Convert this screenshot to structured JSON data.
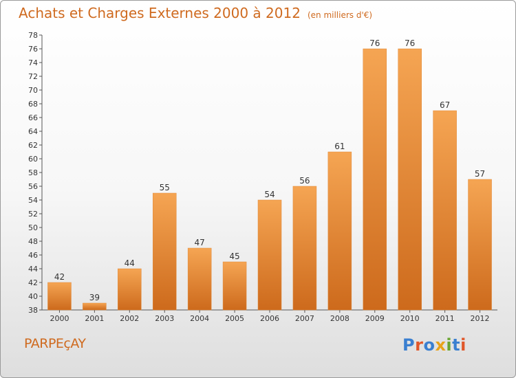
{
  "header": {
    "title": "Achats et Charges Externes 2000 à 2012",
    "unit": "(en milliers d'€)"
  },
  "footer": {
    "commune": "PARPEçAY",
    "brand": "Proxiti",
    "brand_colors": [
      "#3a7fd0",
      "#e0572a",
      "#3a7fd0",
      "#e8a21a",
      "#6aa531",
      "#3a7fd0",
      "#e0572a"
    ]
  },
  "colors": {
    "bar_light": "#f5a553",
    "bar_dark": "#cd6a1c",
    "accent": "#cf6a1f"
  },
  "chart_data": {
    "type": "bar",
    "categories": [
      "2000",
      "2001",
      "2002",
      "2003",
      "2004",
      "2005",
      "2006",
      "2007",
      "2008",
      "2009",
      "2010",
      "2011",
      "2012"
    ],
    "values": [
      42,
      39,
      44,
      55,
      47,
      45,
      54,
      56,
      61,
      76,
      76,
      67,
      57
    ],
    "ylim": [
      38,
      78
    ],
    "ytick_step": 2,
    "grid": false,
    "data_labels": true
  }
}
